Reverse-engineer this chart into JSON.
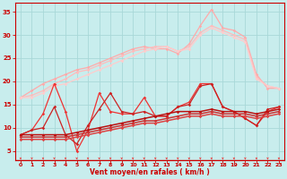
{
  "title": "",
  "xlabel": "Vent moyen/en rafales ( km/h )",
  "background_color": "#c8eded",
  "grid_color": "#a8d8d8",
  "xlim": [
    -0.5,
    23.5
  ],
  "ylim": [
    3,
    37
  ],
  "yticks": [
    5,
    10,
    15,
    20,
    25,
    30,
    35
  ],
  "xticks": [
    0,
    1,
    2,
    3,
    4,
    5,
    6,
    7,
    8,
    9,
    10,
    11,
    12,
    13,
    14,
    15,
    16,
    17,
    18,
    19,
    20,
    21,
    22,
    23
  ],
  "series": [
    {
      "x": [
        0,
        1,
        2,
        3,
        4,
        5,
        6,
        7,
        8,
        9,
        10,
        11,
        12,
        13,
        14,
        15,
        16,
        17,
        18,
        19,
        20,
        21,
        22,
        23
      ],
      "y": [
        16.5,
        18.0,
        19.5,
        20.5,
        21.5,
        22.5,
        23.0,
        24.0,
        25.0,
        26.0,
        27.0,
        27.5,
        27.0,
        27.0,
        26.0,
        28.0,
        32.0,
        35.5,
        31.5,
        31.0,
        29.5,
        21.5,
        18.5,
        18.5
      ],
      "color": "#ffaaaa",
      "lw": 0.9,
      "marker": "D",
      "ms": 1.8
    },
    {
      "x": [
        0,
        1,
        2,
        3,
        4,
        5,
        6,
        7,
        8,
        9,
        10,
        11,
        12,
        13,
        14,
        15,
        16,
        17,
        18,
        19,
        20,
        21,
        22,
        23
      ],
      "y": [
        16.5,
        17.0,
        18.0,
        19.5,
        20.5,
        22.0,
        22.5,
        23.5,
        24.5,
        25.5,
        26.5,
        27.0,
        27.5,
        27.5,
        26.5,
        27.5,
        30.5,
        32.0,
        31.0,
        30.0,
        29.0,
        21.0,
        19.0,
        18.5
      ],
      "color": "#ffbbbb",
      "lw": 0.9,
      "marker": "D",
      "ms": 1.8
    },
    {
      "x": [
        0,
        1,
        2,
        3,
        4,
        5,
        6,
        7,
        8,
        9,
        10,
        11,
        12,
        13,
        14,
        15,
        16,
        17,
        18,
        19,
        20,
        21,
        22,
        23
      ],
      "y": [
        16.5,
        16.5,
        17.5,
        19.0,
        19.5,
        20.5,
        21.5,
        22.5,
        23.5,
        24.5,
        25.5,
        26.5,
        27.0,
        27.5,
        26.5,
        27.0,
        30.0,
        31.5,
        30.5,
        29.5,
        28.5,
        20.5,
        19.0,
        18.5
      ],
      "color": "#ffcccc",
      "lw": 0.9,
      "marker": "D",
      "ms": 1.8
    },
    {
      "x": [
        0,
        1,
        2,
        3,
        4,
        5,
        6,
        7,
        8,
        9,
        10,
        11,
        12,
        13,
        14,
        15,
        16,
        17,
        18,
        19,
        20,
        21,
        22,
        23
      ],
      "y": [
        8.5,
        9.5,
        13.0,
        19.5,
        13.5,
        5.0,
        9.5,
        17.5,
        13.5,
        13.0,
        13.0,
        16.5,
        12.5,
        12.5,
        14.5,
        15.5,
        19.5,
        19.5,
        14.5,
        13.5,
        12.0,
        10.5,
        13.5,
        14.5
      ],
      "color": "#ee3333",
      "lw": 0.9,
      "marker": "D",
      "ms": 1.8
    },
    {
      "x": [
        0,
        1,
        2,
        3,
        4,
        5,
        6,
        7,
        8,
        9,
        10,
        11,
        12,
        13,
        14,
        15,
        16,
        17,
        18,
        19,
        20,
        21,
        22,
        23
      ],
      "y": [
        8.5,
        9.5,
        10.0,
        14.5,
        8.5,
        6.5,
        10.5,
        14.0,
        17.5,
        13.5,
        13.0,
        13.5,
        12.5,
        12.5,
        14.5,
        15.0,
        19.0,
        19.5,
        14.5,
        13.5,
        12.0,
        10.5,
        14.0,
        14.5
      ],
      "color": "#cc2222",
      "lw": 0.9,
      "marker": "D",
      "ms": 1.8
    },
    {
      "x": [
        0,
        1,
        2,
        3,
        4,
        5,
        6,
        7,
        8,
        9,
        10,
        11,
        12,
        13,
        14,
        15,
        16,
        17,
        18,
        19,
        20,
        21,
        22,
        23
      ],
      "y": [
        8.5,
        8.5,
        8.5,
        8.5,
        8.5,
        9.0,
        9.5,
        10.0,
        10.5,
        11.0,
        11.5,
        12.0,
        12.5,
        13.0,
        13.5,
        13.5,
        13.5,
        14.0,
        13.5,
        13.5,
        13.5,
        13.0,
        13.5,
        14.0
      ],
      "color": "#bb1111",
      "lw": 1.1,
      "marker": "D",
      "ms": 1.8
    },
    {
      "x": [
        0,
        1,
        2,
        3,
        4,
        5,
        6,
        7,
        8,
        9,
        10,
        11,
        12,
        13,
        14,
        15,
        16,
        17,
        18,
        19,
        20,
        21,
        22,
        23
      ],
      "y": [
        8.0,
        8.0,
        8.0,
        8.0,
        8.0,
        8.5,
        9.0,
        9.5,
        10.0,
        10.5,
        11.0,
        11.5,
        11.5,
        12.0,
        12.5,
        13.0,
        13.0,
        13.5,
        13.0,
        13.0,
        13.0,
        12.5,
        13.0,
        13.5
      ],
      "color": "#cc3333",
      "lw": 1.1,
      "marker": "D",
      "ms": 1.8
    },
    {
      "x": [
        0,
        1,
        2,
        3,
        4,
        5,
        6,
        7,
        8,
        9,
        10,
        11,
        12,
        13,
        14,
        15,
        16,
        17,
        18,
        19,
        20,
        21,
        22,
        23
      ],
      "y": [
        7.5,
        7.5,
        7.5,
        7.5,
        7.5,
        8.0,
        8.5,
        9.0,
        9.5,
        10.0,
        10.5,
        11.0,
        11.0,
        11.5,
        12.0,
        12.5,
        12.5,
        13.0,
        12.5,
        12.5,
        12.5,
        12.0,
        12.5,
        13.0
      ],
      "color": "#dd4444",
      "lw": 1.1,
      "marker": "D",
      "ms": 1.8
    }
  ],
  "arrow_color": "#ee4444",
  "tick_color": "#cc0000",
  "label_color": "#cc0000",
  "axis_color": "#cc0000"
}
